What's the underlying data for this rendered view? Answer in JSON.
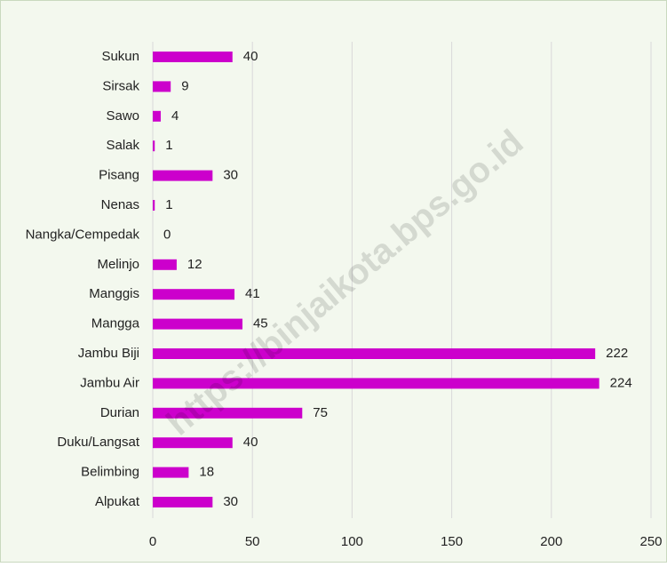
{
  "chart_data": {
    "type": "bar",
    "orientation": "horizontal",
    "categories": [
      "Sukun",
      "Sirsak",
      "Sawo",
      "Salak",
      "Pisang",
      "Nenas",
      "Nangka/Cempedak",
      "Melinjo",
      "Manggis",
      "Mangga",
      "Jambu Biji",
      "Jambu Air",
      "Durian",
      "Duku/Langsat",
      "Belimbing",
      "Alpukat"
    ],
    "values": [
      40,
      9,
      4,
      1,
      30,
      1,
      0,
      12,
      41,
      45,
      222,
      224,
      75,
      40,
      18,
      30
    ],
    "color": "#cc00cc",
    "xlim": [
      0,
      250
    ],
    "xticks": [
      0,
      50,
      100,
      150,
      200,
      250
    ],
    "grid": true,
    "watermark": "https://binjaikota.bps.go.id"
  }
}
